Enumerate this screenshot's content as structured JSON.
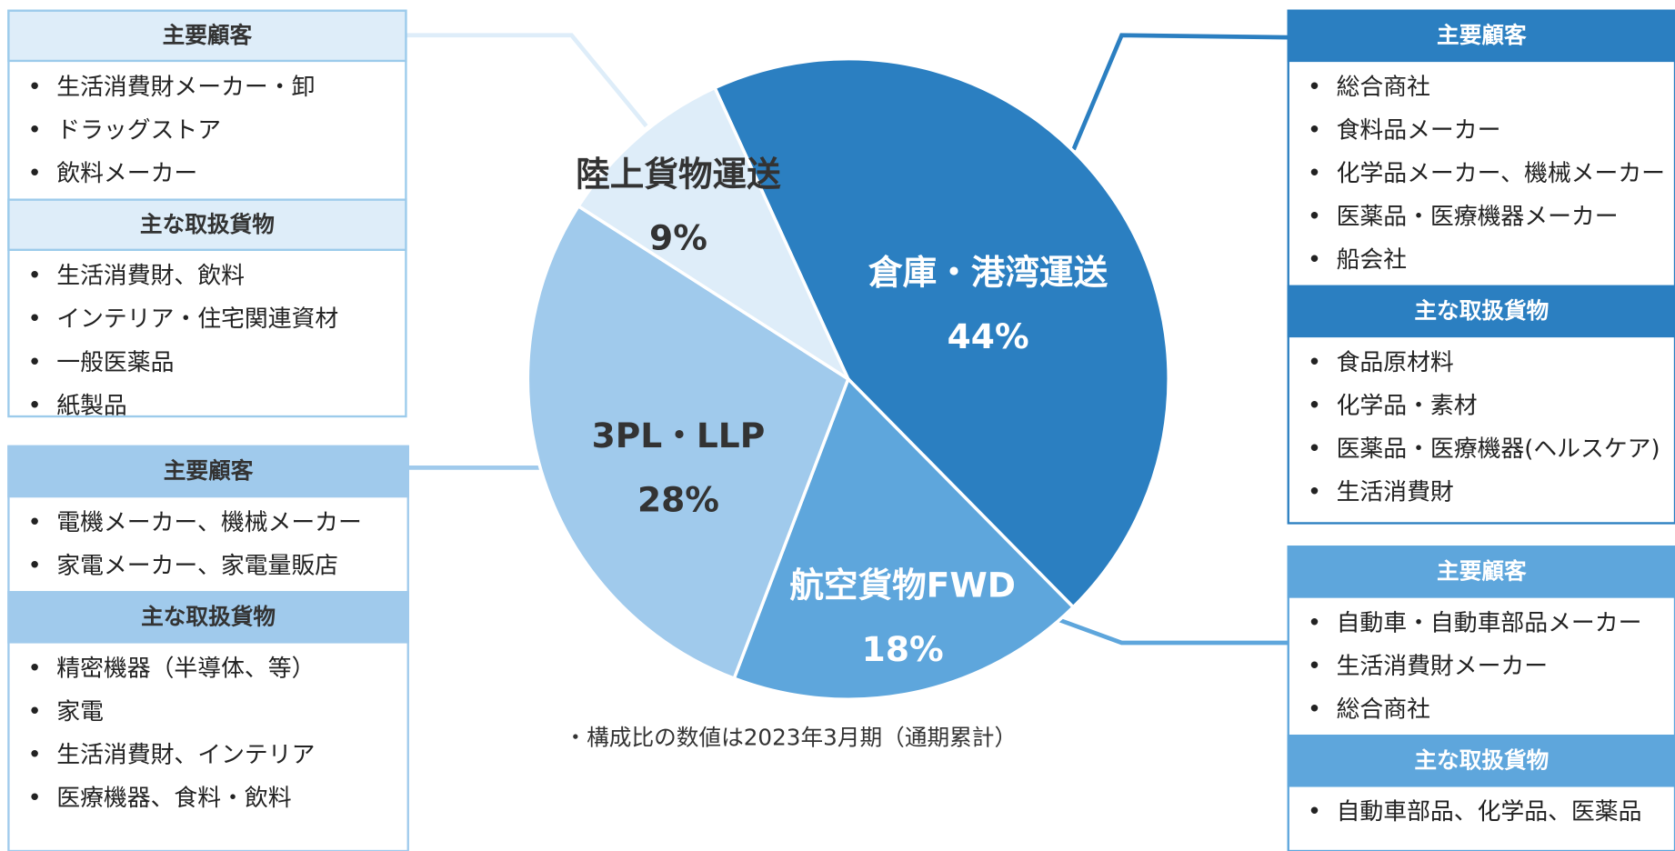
{
  "chart_data": {
    "type": "pie",
    "categories": [
      "倉庫・港湾運送",
      "航空貨物FWD",
      "3PL・LLP",
      "陸上貨物運送"
    ],
    "values": [
      44,
      18,
      28,
      9
    ],
    "value_labels": [
      "44%",
      "18%",
      "28%",
      "9%"
    ],
    "colors": [
      "#2b7fc1",
      "#5ea6dc",
      "#a0caec",
      "#deedf9"
    ],
    "note": "・構成比の数値は2023年3月期（通期累計）"
  },
  "panels": [
    {
      "color": "#deedf9",
      "border": "#9ccbeb",
      "text_color": "#333333",
      "sections": [
        {
          "heading": "主要顧客",
          "items": [
            "生活消費財メーカー・卸",
            "ドラッグストア",
            "飲料メーカー"
          ]
        },
        {
          "heading": "主な取扱貨物",
          "items": [
            "生活消費財、飲料",
            "インテリア・住宅関連資材",
            "一般医薬品",
            "紙製品"
          ]
        }
      ]
    },
    {
      "color": "#a0caec",
      "border": "#a0caec",
      "text_color": "#333333",
      "sections": [
        {
          "heading": "主要顧客",
          "items": [
            "電機メーカー、機械メーカー",
            "家電メーカー、家電量販店"
          ]
        },
        {
          "heading": "主な取扱貨物",
          "items": [
            "精密機器（半導体、等）",
            "家電",
            "生活消費財、インテリア",
            "医療機器、食料・飲料"
          ]
        }
      ]
    },
    {
      "color": "#2b7fc1",
      "border": "#2b7fc1",
      "text_color": "#ffffff",
      "sections": [
        {
          "heading": "主要顧客",
          "items": [
            "総合商社",
            "食料品メーカー",
            "化学品メーカー、機械メーカー",
            "医薬品・医療機器メーカー",
            "船会社"
          ]
        },
        {
          "heading": "主な取扱貨物",
          "items": [
            "食品原材料",
            "化学品・素材",
            "医薬品・医療機器(ヘルスケア)",
            "生活消費財"
          ]
        }
      ]
    },
    {
      "color": "#5ea6dc",
      "border": "#5ea6dc",
      "text_color": "#ffffff",
      "sections": [
        {
          "heading": "主要顧客",
          "items": [
            "自動車・自動車部品メーカー",
            "生活消費財メーカー",
            "総合商社"
          ]
        },
        {
          "heading": "主な取扱貨物",
          "items": [
            "自動車部品、化学品、医薬品"
          ]
        }
      ]
    }
  ]
}
